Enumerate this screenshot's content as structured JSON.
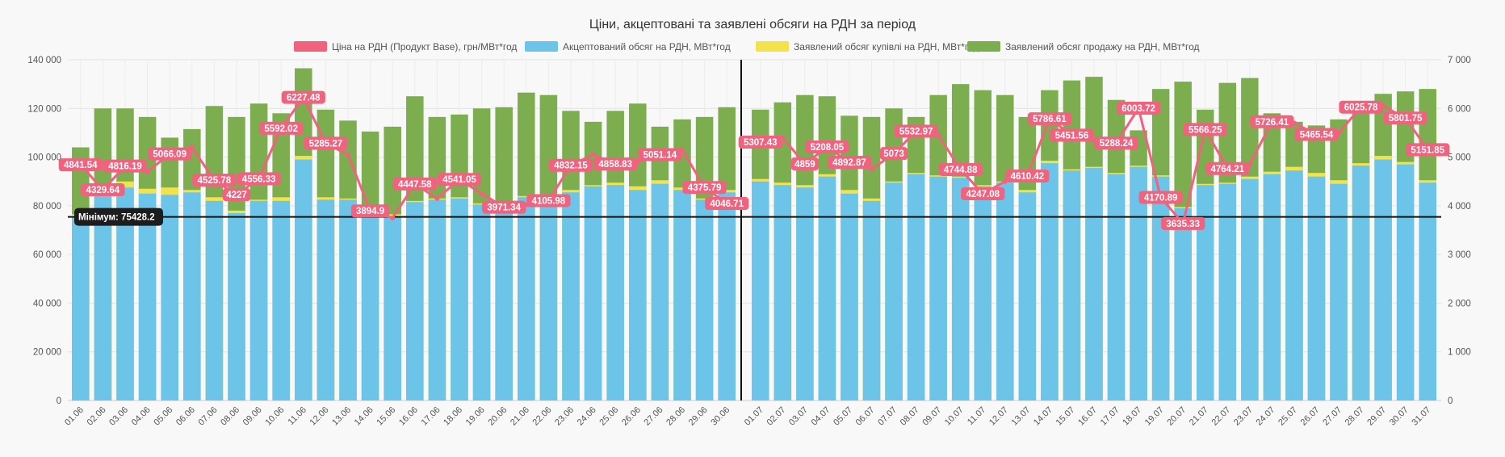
{
  "chart_data": {
    "type": "bar",
    "title": "Ціни, акцептовані та заявлені обсяги на РДН за період",
    "legend": [
      {
        "label": "Ціна на РДН (Продукт Base), грн/МВт*год",
        "color": "#f0627e"
      },
      {
        "label": "Акцептований обсяг на РДН, МВт*год",
        "color": "#6cc4e8"
      },
      {
        "label": "Заявлений обсяг купівлі на РДН, МВт*год",
        "color": "#f2e34d"
      },
      {
        "label": "Заявлений обсяг продажу на РДН, МВт*год",
        "color": "#7cae4f"
      }
    ],
    "legend_position": "top",
    "y_left": {
      "min": 0,
      "max": 140000,
      "ticks": [
        "0",
        "20 000",
        "40 000",
        "60 000",
        "80 000",
        "100 000",
        "120 000",
        "140 000"
      ]
    },
    "y_right": {
      "min": 0,
      "max": 7000,
      "ticks": [
        "0",
        "1 000",
        "2 000",
        "3 000",
        "4 000",
        "5 000",
        "6 000",
        "7 000"
      ]
    },
    "grid": true,
    "minimum_line": {
      "value": 75428.2,
      "label": "Мінімум: 75428.2"
    },
    "groups": [
      {
        "categories": [
          "01.06",
          "02.06",
          "03.06",
          "04.06",
          "05.06",
          "06.06",
          "07.06",
          "08.06",
          "09.06",
          "10.06",
          "11.06",
          "12.06",
          "13.06",
          "14.06",
          "15.06",
          "16.06",
          "17.06",
          "18.06",
          "19.06",
          "20.06",
          "21.06",
          "22.06",
          "23.06",
          "24.06",
          "25.06",
          "26.06",
          "27.06",
          "28.06",
          "29.06",
          "30.06"
        ],
        "accepted": [
          75500,
          84000,
          87500,
          85000,
          84500,
          85500,
          82000,
          77000,
          82000,
          82000,
          99000,
          82500,
          82500,
          75500,
          75428.2,
          81500,
          82500,
          83000,
          80500,
          80000,
          83500,
          84000,
          85500,
          88000,
          88500,
          86500,
          89000,
          86500,
          82500,
          85500
        ],
        "purchase": [
          76500,
          85500,
          90000,
          87000,
          87500,
          86500,
          83500,
          78000,
          82500,
          83500,
          100500,
          83500,
          83000,
          76500,
          76500,
          82000,
          83000,
          83500,
          81000,
          80500,
          84000,
          84500,
          86500,
          88500,
          89500,
          88000,
          90500,
          87500,
          83000,
          86500
        ],
        "sale": [
          104000,
          120000,
          120000,
          116500,
          108000,
          111500,
          121000,
          116500,
          122000,
          118000,
          136500,
          119500,
          115000,
          110500,
          112500,
          125000,
          116500,
          117500,
          120000,
          120500,
          126500,
          125500,
          119000,
          114500,
          119000,
          122000,
          112500,
          115500,
          116500,
          120500
        ],
        "price": [
          4841.54,
          4329.64,
          4816.19,
          4700,
          5066.09,
          5200,
          4525.78,
          4227,
          4556.33,
          5592.02,
          6227.48,
          5285.27,
          5050,
          3894.9,
          3750,
          4447.58,
          4150,
          4541.05,
          4250,
          3971.34,
          4020,
          4105.98,
          4832.15,
          5050,
          4858.83,
          4900,
          5051.14,
          5150,
          4375.79,
          4046.71
        ],
        "price_labels": [
          "4841.54",
          "4329.64",
          "4816.19",
          "",
          "5066.09",
          "",
          "4525.78",
          "4227",
          "4556.33",
          "5592.02",
          "6227.48",
          "5285.27",
          "",
          "3894.9",
          "",
          "4447.58",
          "",
          "4541.05",
          "",
          "3971.34",
          "",
          "4105.98",
          "4832.15",
          "",
          "4858.83",
          "",
          "5051.14",
          "",
          "4375.79",
          "4046.71"
        ]
      },
      {
        "categories": [
          "01.07",
          "02.07",
          "03.07",
          "04.07",
          "05.07",
          "06.07",
          "07.07",
          "08.07",
          "09.07",
          "10.07",
          "11.07",
          "12.07",
          "13.07",
          "14.07",
          "15.07",
          "16.07",
          "17.07",
          "18.07",
          "19.07",
          "20.07",
          "21.07",
          "22.07",
          "23.07",
          "24.07",
          "25.07",
          "26.07",
          "27.07",
          "28.07",
          "29.07",
          "30.07",
          "31.07"
        ],
        "accepted": [
          90000,
          88500,
          87500,
          92000,
          85000,
          82000,
          89500,
          93000,
          92000,
          91500,
          88000,
          89500,
          85500,
          97500,
          94500,
          95500,
          93000,
          96000,
          92000,
          79000,
          88500,
          89000,
          91000,
          93000,
          94500,
          92000,
          89000,
          96500,
          99000,
          97000,
          89500
        ],
        "purchase": [
          91000,
          89500,
          88500,
          93000,
          86500,
          83000,
          90000,
          93500,
          92500,
          92000,
          88500,
          90000,
          86500,
          98500,
          95000,
          96000,
          93500,
          96500,
          92500,
          79500,
          89000,
          89500,
          92000,
          94000,
          96000,
          93500,
          90500,
          97500,
          100500,
          98000,
          90500
        ],
        "sale": [
          119500,
          122500,
          125500,
          125000,
          117000,
          116500,
          120000,
          116500,
          125500,
          130000,
          127500,
          125500,
          116500,
          127500,
          131500,
          133000,
          123500,
          111000,
          128000,
          131000,
          119500,
          130500,
          132500,
          118000,
          114500,
          113000,
          115500,
          120500,
          126000,
          127000,
          128000
        ],
        "price": [
          5307.43,
          5400,
          4859,
          5208.05,
          4892.87,
          4750,
          5073,
          5532.97,
          5450,
          4744.88,
          4247.08,
          4500,
          4610.42,
          5786.61,
          5451.56,
          5350,
          5288.24,
          6003.72,
          4170.89,
          3635.33,
          5566.25,
          4764.21,
          4850,
          5726.41,
          5700,
          5465.54,
          5500,
          6025.78,
          6050,
          5801.75,
          5151.85
        ],
        "price_labels": [
          "5307.43",
          "",
          "4859",
          "5208.05",
          "4892.87",
          "",
          "5073",
          "5532.97",
          "",
          "4744.88",
          "4247.08",
          "",
          "4610.42",
          "5786.61",
          "5451.56",
          "",
          "5288.24",
          "6003.72",
          "4170.89",
          "3635.33",
          "5566.25",
          "4764.21",
          "",
          "5726.41",
          "",
          "5465.54",
          "",
          "6025.78",
          "",
          "5801.75",
          "5151.85"
        ]
      }
    ]
  }
}
